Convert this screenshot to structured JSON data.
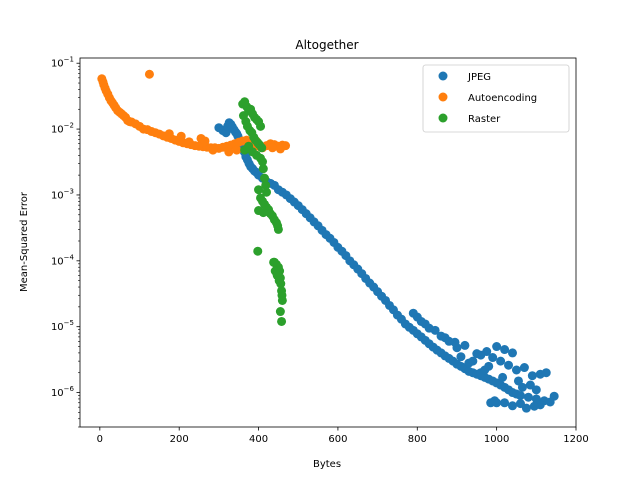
{
  "chart_data": {
    "type": "scatter",
    "title": "Altogether",
    "xlabel": "Bytes",
    "ylabel": "Mean-Squared Error",
    "xscale": "linear",
    "yscale": "log",
    "xlim": [
      -50,
      1200
    ],
    "ylim": [
      3e-07,
      0.12
    ],
    "xticks": [
      0,
      200,
      400,
      600,
      800,
      1000,
      1200
    ],
    "yticks": [
      {
        "value": 1e-06,
        "base": "10",
        "exp": "−6"
      },
      {
        "value": 1e-05,
        "base": "10",
        "exp": "−5"
      },
      {
        "value": 0.0001,
        "base": "10",
        "exp": "−4"
      },
      {
        "value": 0.001,
        "base": "10",
        "exp": "−3"
      },
      {
        "value": 0.01,
        "base": "10",
        "exp": "−2"
      },
      {
        "value": 0.1,
        "base": "10",
        "exp": "−1"
      }
    ],
    "grid": false,
    "legend_position": "top-right",
    "series": [
      {
        "name": "JPEG",
        "color": "#1f77b4",
        "points": [
          [
            300,
            0.0105
          ],
          [
            310,
            0.0095
          ],
          [
            318,
            0.0088
          ],
          [
            322,
            0.011
          ],
          [
            326,
            0.0125
          ],
          [
            330,
            0.0118
          ],
          [
            334,
            0.0108
          ],
          [
            338,
            0.0098
          ],
          [
            342,
            0.009
          ],
          [
            345,
            0.0085
          ],
          [
            348,
            0.0078
          ],
          [
            352,
            0.0068
          ],
          [
            356,
            0.006
          ],
          [
            360,
            0.0052
          ],
          [
            364,
            0.0045
          ],
          [
            368,
            0.0038
          ],
          [
            372,
            0.0034
          ],
          [
            376,
            0.003
          ],
          [
            380,
            0.0027
          ],
          [
            385,
            0.0025
          ],
          [
            390,
            0.0023
          ],
          [
            395,
            0.0022
          ],
          [
            400,
            0.002
          ],
          [
            410,
            0.0018
          ],
          [
            420,
            0.0016
          ],
          [
            430,
            0.0015
          ],
          [
            440,
            0.0014
          ],
          [
            450,
            0.0012
          ],
          [
            460,
            0.0011
          ],
          [
            470,
            0.001
          ],
          [
            480,
            0.00088
          ],
          [
            490,
            0.00078
          ],
          [
            500,
            0.00069
          ],
          [
            510,
            0.0006
          ],
          [
            520,
            0.00052
          ],
          [
            530,
            0.00045
          ],
          [
            540,
            0.00039
          ],
          [
            550,
            0.00034
          ],
          [
            560,
            0.00029
          ],
          [
            570,
            0.00025
          ],
          [
            580,
            0.00022
          ],
          [
            590,
            0.00019
          ],
          [
            600,
            0.00016
          ],
          [
            610,
            0.00014
          ],
          [
            620,
            0.00012
          ],
          [
            630,
            0.0001
          ],
          [
            640,
            8.7e-05
          ],
          [
            650,
            7.5e-05
          ],
          [
            660,
            6.4e-05
          ],
          [
            670,
            5.4e-05
          ],
          [
            680,
            4.6e-05
          ],
          [
            690,
            4e-05
          ],
          [
            700,
            3.4e-05
          ],
          [
            710,
            2.9e-05
          ],
          [
            720,
            2.5e-05
          ],
          [
            730,
            2.1e-05
          ],
          [
            740,
            1.8e-05
          ],
          [
            750,
            1.5e-05
          ],
          [
            760,
            1.3e-05
          ],
          [
            770,
            1.1e-05
          ],
          [
            780,
            9.8e-06
          ],
          [
            790,
            8.8e-06
          ],
          [
            800,
            7.8e-06
          ],
          [
            810,
            7e-06
          ],
          [
            820,
            6.2e-06
          ],
          [
            830,
            5.5e-06
          ],
          [
            840,
            4.9e-06
          ],
          [
            850,
            4.4e-06
          ],
          [
            860,
            4e-06
          ],
          [
            870,
            3.6e-06
          ],
          [
            880,
            3.3e-06
          ],
          [
            890,
            3e-06
          ],
          [
            900,
            2.7e-06
          ],
          [
            910,
            2.5e-06
          ],
          [
            920,
            2.3e-06
          ],
          [
            930,
            2.1e-06
          ],
          [
            940,
            2e-06
          ],
          [
            950,
            1.9e-06
          ],
          [
            960,
            1.8e-06
          ],
          [
            970,
            1.7e-06
          ],
          [
            980,
            1.6e-06
          ],
          [
            990,
            1.5e-06
          ],
          [
            1000,
            1.4e-06
          ],
          [
            1010,
            1.3e-06
          ],
          [
            1020,
            1.2e-06
          ],
          [
            1030,
            1.1e-06
          ],
          [
            1040,
            1e-06
          ],
          [
            1050,
            9.5e-07
          ],
          [
            1060,
            9e-07
          ],
          [
            1080,
            8.5e-07
          ],
          [
            1100,
            8e-07
          ],
          [
            1120,
            7.5e-07
          ],
          [
            1145,
            8.8e-07
          ],
          [
            1135,
            7.2e-07
          ],
          [
            1110,
            6.5e-07
          ],
          [
            1095,
            6.2e-07
          ],
          [
            1075,
            5.8e-07
          ],
          [
            1060,
            6.8e-07
          ],
          [
            1040,
            6.3e-07
          ],
          [
            1020,
            7e-07
          ],
          [
            1000,
            7e-07
          ],
          [
            985,
            7e-07
          ],
          [
            995,
            7.5e-07
          ],
          [
            980,
            2.5e-06
          ],
          [
            990,
            3.4e-06
          ],
          [
            1010,
            3e-06
          ],
          [
            1030,
            2.6e-06
          ],
          [
            1050,
            2.2e-06
          ],
          [
            1070,
            2.4e-06
          ],
          [
            1090,
            1.8e-06
          ],
          [
            1110,
            1.9e-06
          ],
          [
            1125,
            2e-06
          ],
          [
            1040,
            4e-06
          ],
          [
            1020,
            4.5e-06
          ],
          [
            1000,
            5e-06
          ],
          [
            975,
            4.2e-06
          ],
          [
            960,
            3.7e-06
          ],
          [
            950,
            3.9e-06
          ],
          [
            940,
            3e-06
          ],
          [
            930,
            2.8e-06
          ],
          [
            910,
            3.5e-06
          ],
          [
            900,
            4.8e-06
          ],
          [
            895,
            5.8e-06
          ],
          [
            880,
            6e-06
          ],
          [
            870,
            6.8e-06
          ],
          [
            860,
            7.2e-06
          ],
          [
            845,
            8.8e-06
          ],
          [
            830,
            9.5e-06
          ],
          [
            820,
            1.1e-05
          ],
          [
            810,
            1.2e-05
          ],
          [
            800,
            1.4e-05
          ],
          [
            790,
            1.6e-05
          ],
          [
            920,
            5.2e-06
          ],
          [
            960,
            2e-06
          ],
          [
            970,
            2.2e-06
          ],
          [
            1015,
            1.7e-06
          ],
          [
            1055,
            1.5e-06
          ],
          [
            1065,
            1.2e-06
          ],
          [
            1085,
            1.3e-06
          ],
          [
            1100,
            1.1e-06
          ]
        ]
      },
      {
        "name": "Autoencoding",
        "color": "#ff7f0e",
        "points": [
          [
            5,
            0.058
          ],
          [
            8,
            0.052
          ],
          [
            10,
            0.047
          ],
          [
            13,
            0.042
          ],
          [
            16,
            0.038
          ],
          [
            20,
            0.034
          ],
          [
            24,
            0.03
          ],
          [
            28,
            0.027
          ],
          [
            32,
            0.025
          ],
          [
            36,
            0.023
          ],
          [
            40,
            0.021
          ],
          [
            45,
            0.019
          ],
          [
            50,
            0.018
          ],
          [
            55,
            0.017
          ],
          [
            60,
            0.016
          ],
          [
            65,
            0.015
          ],
          [
            70,
            0.0135
          ],
          [
            75,
            0.013
          ],
          [
            80,
            0.0128
          ],
          [
            90,
            0.012
          ],
          [
            100,
            0.011
          ],
          [
            110,
            0.01
          ],
          [
            120,
            0.0098
          ],
          [
            125,
            0.068
          ],
          [
            130,
            0.0092
          ],
          [
            140,
            0.0088
          ],
          [
            150,
            0.0084
          ],
          [
            160,
            0.0079
          ],
          [
            170,
            0.0075
          ],
          [
            180,
            0.0072
          ],
          [
            190,
            0.0068
          ],
          [
            200,
            0.0065
          ],
          [
            210,
            0.0062
          ],
          [
            220,
            0.006
          ],
          [
            230,
            0.0058
          ],
          [
            240,
            0.0056
          ],
          [
            250,
            0.0055
          ],
          [
            260,
            0.0054
          ],
          [
            270,
            0.0053
          ],
          [
            280,
            0.0052
          ],
          [
            290,
            0.0052
          ],
          [
            300,
            0.0051
          ],
          [
            310,
            0.0053
          ],
          [
            320,
            0.0055
          ],
          [
            330,
            0.0057
          ],
          [
            340,
            0.006
          ],
          [
            350,
            0.0063
          ],
          [
            360,
            0.0066
          ],
          [
            370,
            0.0068
          ],
          [
            380,
            0.0062
          ],
          [
            390,
            0.0058
          ],
          [
            400,
            0.0055
          ],
          [
            410,
            0.0052
          ],
          [
            420,
            0.0056
          ],
          [
            430,
            0.006
          ],
          [
            440,
            0.0058
          ],
          [
            450,
            0.0055
          ],
          [
            460,
            0.0057
          ],
          [
            468,
            0.0056
          ],
          [
            175,
            0.0085
          ],
          [
            205,
            0.0078
          ],
          [
            255,
            0.0072
          ],
          [
            285,
            0.0048
          ],
          [
            325,
            0.0045
          ],
          [
            345,
            0.0048
          ],
          [
            395,
            0.0065
          ],
          [
            435,
            0.0052
          ],
          [
            455,
            0.005
          ],
          [
            225,
            0.0064
          ],
          [
            265,
            0.0066
          ]
        ]
      },
      {
        "name": "Raster",
        "color": "#2ca02c",
        "points": [
          [
            360,
            0.024
          ],
          [
            365,
            0.026
          ],
          [
            370,
            0.022
          ],
          [
            375,
            0.019
          ],
          [
            380,
            0.02
          ],
          [
            385,
            0.017
          ],
          [
            390,
            0.015
          ],
          [
            395,
            0.014
          ],
          [
            400,
            0.013
          ],
          [
            405,
            0.011
          ],
          [
            362,
            0.016
          ],
          [
            368,
            0.013
          ],
          [
            372,
            0.011
          ],
          [
            378,
            0.0095
          ],
          [
            383,
            0.0088
          ],
          [
            388,
            0.0075
          ],
          [
            392,
            0.0068
          ],
          [
            398,
            0.0062
          ],
          [
            402,
            0.0058
          ],
          [
            408,
            0.0052
          ],
          [
            365,
            0.0048
          ],
          [
            375,
            0.0055
          ],
          [
            385,
            0.0045
          ],
          [
            395,
            0.004
          ],
          [
            405,
            0.0036
          ],
          [
            410,
            0.0032
          ],
          [
            412,
            0.0025
          ],
          [
            415,
            0.0018
          ],
          [
            418,
            0.0014
          ],
          [
            420,
            0.0011
          ],
          [
            400,
            0.0012
          ],
          [
            405,
            0.0009
          ],
          [
            410,
            0.0008
          ],
          [
            415,
            0.00072
          ],
          [
            420,
            0.00065
          ],
          [
            425,
            0.0006
          ],
          [
            400,
            0.00058
          ],
          [
            412,
            0.00054
          ],
          [
            430,
            0.00052
          ],
          [
            435,
            0.00048
          ],
          [
            440,
            0.00042
          ],
          [
            445,
            0.00038
          ],
          [
            448,
            0.00034
          ],
          [
            450,
            0.0003
          ],
          [
            398,
            0.00014
          ],
          [
            440,
            9.5e-05
          ],
          [
            445,
            8.8e-05
          ],
          [
            450,
            8e-05
          ],
          [
            453,
            7e-05
          ],
          [
            455,
            5.5e-05
          ],
          [
            456,
            4.5e-05
          ],
          [
            458,
            3.5e-05
          ],
          [
            459,
            3e-05
          ],
          [
            460,
            2.5e-05
          ],
          [
            455,
            1.7e-05
          ],
          [
            458,
            1.2e-05
          ],
          [
            438,
            9.5e-05
          ],
          [
            442,
            7e-05
          ],
          [
            447,
            6e-05
          ],
          [
            452,
            5e-05
          ]
        ]
      }
    ]
  }
}
